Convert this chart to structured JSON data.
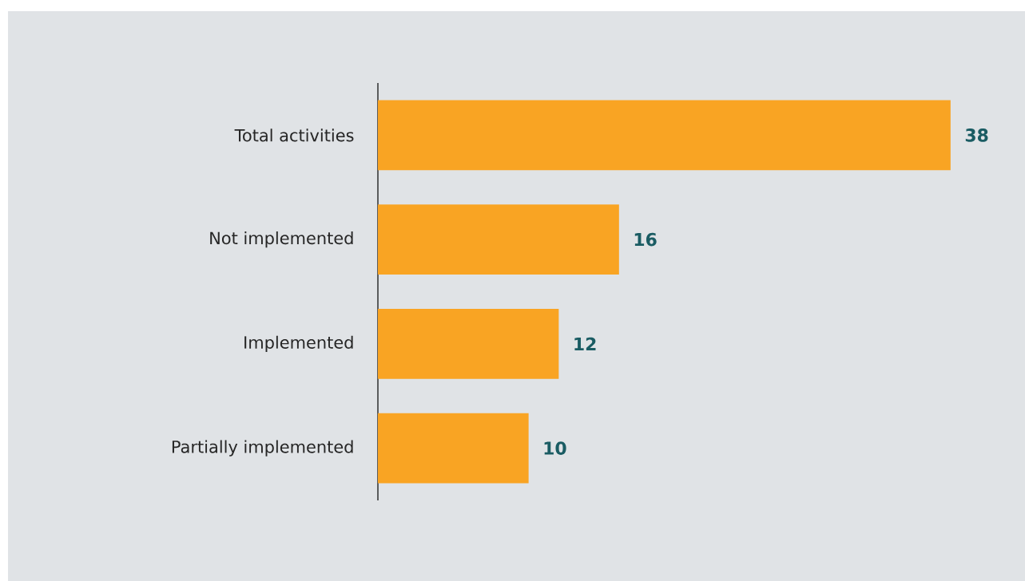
{
  "chart_data": {
    "type": "bar",
    "orientation": "horizontal",
    "categories": [
      "Total activities",
      "Not implemented",
      "Implemented",
      "Partially implemented"
    ],
    "values": [
      38,
      16,
      12,
      10
    ],
    "color": "#f9a423",
    "data_labels": true
  }
}
